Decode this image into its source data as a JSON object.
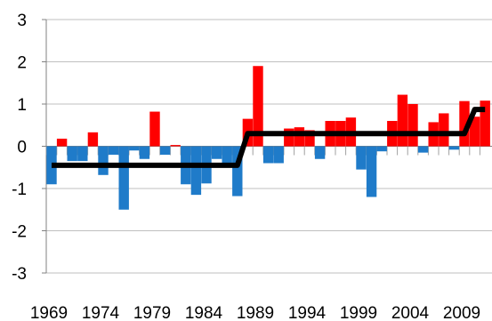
{
  "chart_data": {
    "type": "bar",
    "title": "",
    "xlabel": "",
    "ylabel": "",
    "ylim": [
      -3,
      3
    ],
    "yticks": [
      3,
      2,
      1,
      0,
      -1,
      -2,
      -3
    ],
    "ytick_labels": [
      "3",
      "2",
      "1",
      "0",
      "-1",
      "-2",
      "-3"
    ],
    "xtick_labels": [
      "1969",
      "1974",
      "1979",
      "1984",
      "1989",
      "1994",
      "1999",
      "2004",
      "2009"
    ],
    "grid": "horizontal",
    "legend": "none",
    "categories": [
      1969,
      1970,
      1971,
      1972,
      1973,
      1974,
      1975,
      1976,
      1977,
      1978,
      1979,
      1980,
      1981,
      1982,
      1983,
      1984,
      1985,
      1986,
      1987,
      1988,
      1989,
      1990,
      1991,
      1992,
      1993,
      1994,
      1995,
      1996,
      1997,
      1998,
      1999,
      2000,
      2001,
      2002,
      2003,
      2004,
      2005,
      2006,
      2007,
      2008,
      2009,
      2010,
      2011
    ],
    "values": [
      -0.9,
      0.18,
      -0.35,
      -0.35,
      0.33,
      -0.68,
      -0.2,
      -1.5,
      -0.1,
      -0.3,
      0.82,
      -0.2,
      0.03,
      -0.9,
      -1.15,
      -0.88,
      -0.3,
      -0.45,
      -1.18,
      0.65,
      1.9,
      -0.4,
      -0.4,
      0.42,
      0.45,
      0.38,
      -0.3,
      0.6,
      0.6,
      0.68,
      -0.55,
      -1.2,
      -0.12,
      0.6,
      1.22,
      1.0,
      -0.15,
      0.57,
      0.78,
      -0.08,
      1.07,
      0.7,
      1.08
    ],
    "colors": {
      "positive": "#ff0000",
      "negative": "#1f7bc9",
      "step_line": "#000000",
      "grid": "#bfbfbf"
    },
    "step_line": {
      "segments": [
        {
          "x_start": 1969,
          "x_end": 1987,
          "y": -0.45
        },
        {
          "x_start": 1988,
          "x_end": 2009,
          "y": 0.3
        },
        {
          "x_start": 2010,
          "x_end": 2011,
          "y": 0.87
        }
      ]
    }
  }
}
